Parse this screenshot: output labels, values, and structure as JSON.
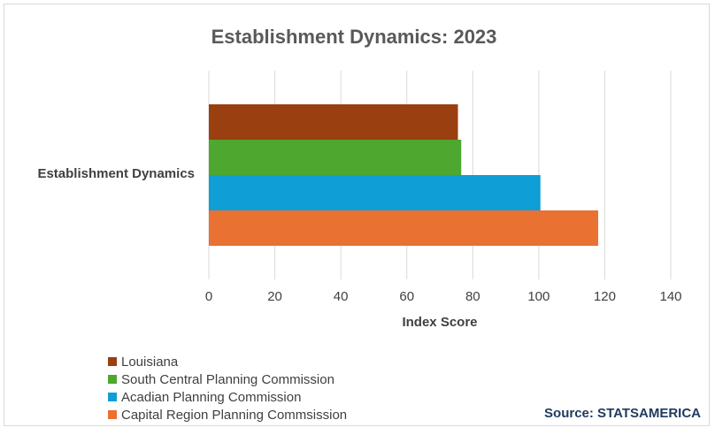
{
  "chart_data": {
    "type": "bar",
    "orientation": "horizontal",
    "title": "Establishment Dynamics: 2023",
    "xlabel": "Index Score",
    "ylabel": "",
    "categories": [
      "Establishment Dynamics"
    ],
    "xlim": [
      0,
      140
    ],
    "xticks": [
      0,
      20,
      40,
      60,
      80,
      100,
      120,
      140
    ],
    "grid": "vertical",
    "legend_position": "bottom-left",
    "series": [
      {
        "name": "Louisiana",
        "values": [
          75.5
        ],
        "color": "#9a3f10"
      },
      {
        "name": "South Central Planning Commission",
        "values": [
          76.5
        ],
        "color": "#4ea72e"
      },
      {
        "name": "Acadian Planning Commission",
        "values": [
          100.5
        ],
        "color": "#0f9ed5"
      },
      {
        "name": "Capital Region Planning Commsission",
        "values": [
          118
        ],
        "color": "#e97132"
      }
    ],
    "source": "Source: STATSAMERICA"
  }
}
